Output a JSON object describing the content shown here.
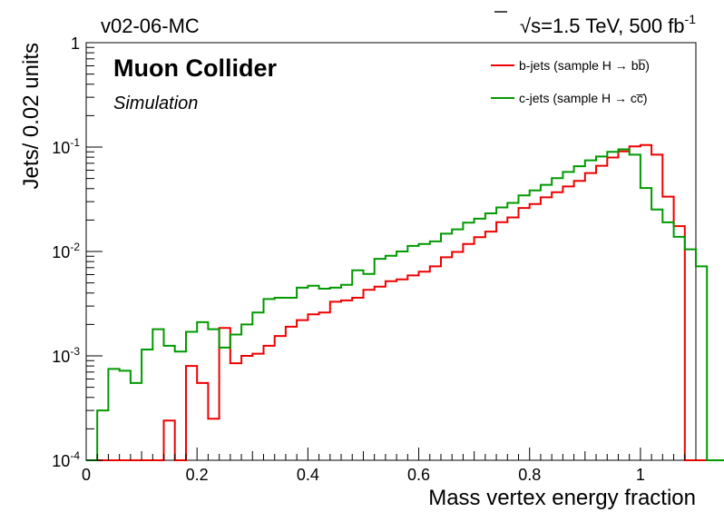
{
  "header": {
    "left": "v02-06-MC",
    "right_sqrt": "√s",
    "right_text": "=1.5 TeV, 500 fb",
    "right_sup": "-1"
  },
  "labels": {
    "experiment": "Muon Collider",
    "status": "Simulation"
  },
  "chart_data": {
    "type": "line",
    "style": "step histogram",
    "xlabel": "Mass vertex energy fraction",
    "ylabel": "Jets/ 0.02 units",
    "xlim": [
      0,
      1.1
    ],
    "ylim": [
      0.0001,
      1
    ],
    "yscale": "log",
    "bin_width": 0.02,
    "x_ticks": [
      "0",
      "0.2",
      "0.4",
      "0.6",
      "0.8",
      "1"
    ],
    "x_tick_values": [
      0,
      0.2,
      0.4,
      0.6,
      0.8,
      1
    ],
    "y_ticks": [
      {
        "value": 1,
        "base": "1",
        "exp": ""
      },
      {
        "value": 0.1,
        "base": "10",
        "exp": "-1"
      },
      {
        "value": 0.01,
        "base": "10",
        "exp": "-2"
      },
      {
        "value": 0.001,
        "base": "10",
        "exp": "-3"
      },
      {
        "value": 0.0001,
        "base": "10",
        "exp": "-4"
      }
    ],
    "legend_position": "top-right",
    "series": [
      {
        "name": "b-jets (sample H → bb̅)",
        "color": "#ee0000",
        "values": [
          0,
          0,
          0,
          0,
          0,
          0,
          0,
          0.00024,
          0,
          0.0008,
          0.00055,
          0.00025,
          0.00185,
          0.00085,
          0.001,
          0.00105,
          0.00125,
          0.00155,
          0.0019,
          0.0022,
          0.0025,
          0.0026,
          0.0033,
          0.0034,
          0.0036,
          0.0043,
          0.0046,
          0.0052,
          0.0054,
          0.0059,
          0.0064,
          0.0072,
          0.0088,
          0.0099,
          0.0118,
          0.0137,
          0.0155,
          0.0191,
          0.0212,
          0.0261,
          0.0285,
          0.033,
          0.037,
          0.0419,
          0.0475,
          0.0564,
          0.0662,
          0.0795,
          0.091,
          0.1015,
          0.1045,
          0.0845,
          0.0335,
          0.0175,
          0,
          0,
          0,
          0,
          0,
          0
        ]
      },
      {
        "name": "c-jets (sample H → cc̅)",
        "color": "#009900",
        "values": [
          0,
          0.0003,
          0.00075,
          0.00072,
          0.00055,
          0.00115,
          0.0018,
          0.00125,
          0.0011,
          0.0017,
          0.0021,
          0.0018,
          0.0012,
          0.0016,
          0.002,
          0.0026,
          0.0035,
          0.0036,
          0.0036,
          0.0045,
          0.0047,
          0.0044,
          0.0045,
          0.0048,
          0.0066,
          0.0061,
          0.0085,
          0.0091,
          0.01,
          0.0113,
          0.0118,
          0.0125,
          0.0148,
          0.0163,
          0.0189,
          0.0206,
          0.0232,
          0.0264,
          0.0292,
          0.0344,
          0.0385,
          0.0435,
          0.0503,
          0.0578,
          0.0655,
          0.0747,
          0.0812,
          0.0902,
          0.0952,
          0.0845,
          0.0405,
          0.0252,
          0.019,
          0.0138,
          0.0105,
          0.0072,
          0,
          0,
          0,
          0
        ]
      }
    ]
  }
}
